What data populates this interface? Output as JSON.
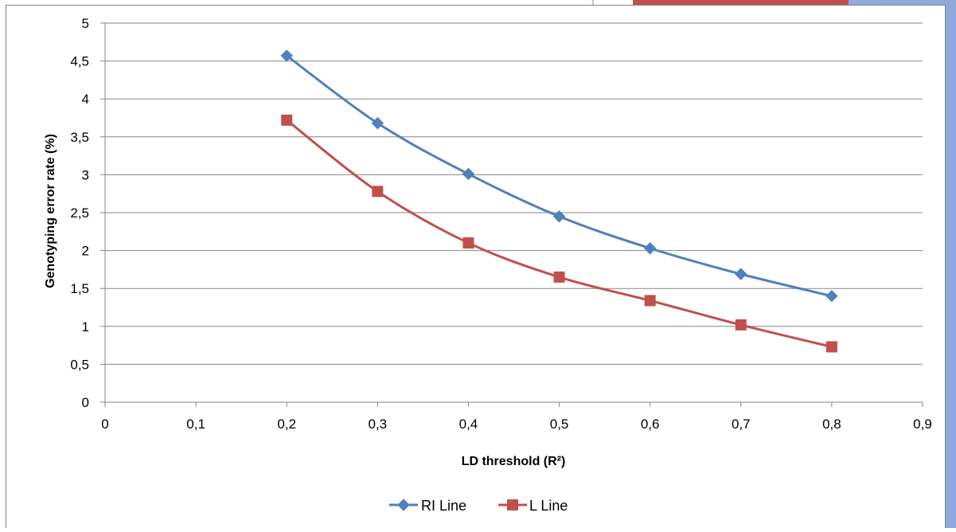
{
  "colors": {
    "series_1": "#4F81BD",
    "series_2": "#C0504D",
    "gridline": "#868686",
    "axis": "#868686",
    "frame": "#868686",
    "corner_tab_fill": "#C0504D",
    "corner_tab_accent": "#8EA9DB"
  },
  "chart_data": {
    "type": "scatter",
    "subtype": "smooth-line-with-markers",
    "title": "",
    "xlabel": "LD threshold (R²)",
    "ylabel": "Genotyping error rate (%)",
    "xlim": [
      0,
      0.9
    ],
    "ylim": [
      0,
      5
    ],
    "x_ticks": [
      "0",
      "0,1",
      "0,2",
      "0,3",
      "0,4",
      "0,5",
      "0,6",
      "0,7",
      "0,8",
      "0,9"
    ],
    "x_tick_values": [
      0,
      0.1,
      0.2,
      0.3,
      0.4,
      0.5,
      0.6,
      0.7,
      0.8,
      0.9
    ],
    "y_ticks": [
      "0",
      "0,5",
      "1",
      "1,5",
      "2",
      "2,5",
      "3",
      "3,5",
      "4",
      "4,5",
      "5"
    ],
    "y_tick_values": [
      0,
      0.5,
      1,
      1.5,
      2,
      2.5,
      3,
      3.5,
      4,
      4.5,
      5
    ],
    "grid": "horizontal major gridlines",
    "legend_position": "bottom",
    "series": [
      {
        "name": "RI Line",
        "marker": "diamond",
        "color": "#4F81BD",
        "x": [
          0.2,
          0.3,
          0.4,
          0.5,
          0.6,
          0.7,
          0.8
        ],
        "y": [
          4.57,
          3.68,
          3.01,
          2.45,
          2.03,
          1.69,
          1.4
        ]
      },
      {
        "name": "L Line",
        "marker": "square",
        "color": "#C0504D",
        "x": [
          0.2,
          0.3,
          0.4,
          0.5,
          0.6,
          0.7,
          0.8
        ],
        "y": [
          3.72,
          2.78,
          2.1,
          1.65,
          1.34,
          1.02,
          0.73
        ]
      }
    ]
  }
}
